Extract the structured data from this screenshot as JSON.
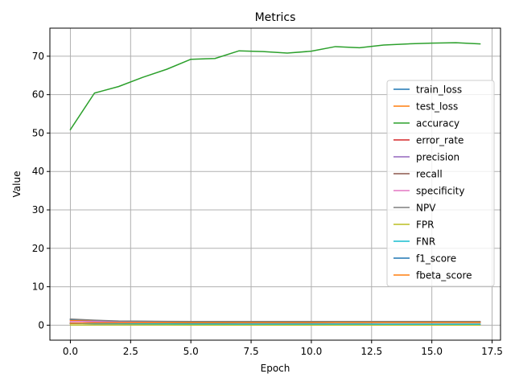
{
  "chart_data": {
    "type": "line",
    "title": "Metrics",
    "xlabel": "Epoch",
    "ylabel": "Value",
    "xlim": [
      -0.85,
      17.85
    ],
    "ylim": [
      -3.9,
      77.3
    ],
    "xticks": [
      0.0,
      2.5,
      5.0,
      7.5,
      10.0,
      12.5,
      15.0,
      17.5
    ],
    "xtick_labels": [
      "0.0",
      "2.5",
      "5.0",
      "7.5",
      "10.0",
      "12.5",
      "15.0",
      "17.5"
    ],
    "yticks": [
      0,
      10,
      20,
      30,
      40,
      50,
      60,
      70
    ],
    "ytick_labels": [
      "0",
      "10",
      "20",
      "30",
      "40",
      "50",
      "60",
      "70"
    ],
    "grid": true,
    "legend_position": "center-right",
    "x": [
      0,
      1,
      2,
      3,
      4,
      5,
      6,
      7,
      8,
      9,
      10,
      11,
      12,
      13,
      14,
      15,
      16,
      17
    ],
    "series": [
      {
        "name": "train_loss",
        "color": "#1f77b4",
        "values": [
          1.45,
          1.15,
          1.05,
          0.98,
          0.93,
          0.89,
          0.86,
          0.84,
          0.82,
          0.81,
          0.8,
          0.79,
          0.78,
          0.77,
          0.77,
          0.76,
          0.76,
          0.75
        ]
      },
      {
        "name": "test_loss",
        "color": "#ff7f0e",
        "values": [
          1.2,
          1.05,
          0.98,
          0.93,
          0.9,
          0.88,
          0.87,
          0.86,
          0.86,
          0.85,
          0.85,
          0.85,
          0.85,
          0.85,
          0.85,
          0.85,
          0.85,
          0.85
        ]
      },
      {
        "name": "accuracy",
        "color": "#2ca02c",
        "values": [
          50.9,
          60.4,
          62.1,
          64.5,
          66.6,
          69.2,
          69.4,
          71.4,
          71.2,
          70.8,
          71.3,
          72.5,
          72.2,
          72.9,
          73.2,
          73.4,
          73.5,
          73.2
        ]
      },
      {
        "name": "error_rate",
        "color": "#d62728",
        "values": [
          0.49,
          0.4,
          0.38,
          0.36,
          0.33,
          0.31,
          0.31,
          0.29,
          0.29,
          0.29,
          0.29,
          0.28,
          0.28,
          0.27,
          0.27,
          0.27,
          0.27,
          0.27
        ]
      },
      {
        "name": "precision",
        "color": "#9467bd",
        "values": [
          0.51,
          0.6,
          0.62,
          0.64,
          0.66,
          0.69,
          0.69,
          0.71,
          0.71,
          0.71,
          0.71,
          0.72,
          0.72,
          0.73,
          0.73,
          0.73,
          0.73,
          0.73
        ]
      },
      {
        "name": "recall",
        "color": "#8c564b",
        "values": [
          0.5,
          0.6,
          0.62,
          0.64,
          0.66,
          0.69,
          0.69,
          0.71,
          0.71,
          0.71,
          0.71,
          0.72,
          0.72,
          0.73,
          0.73,
          0.73,
          0.73,
          0.73
        ]
      },
      {
        "name": "specificity",
        "color": "#e377c2",
        "values": [
          0.95,
          0.96,
          0.96,
          0.96,
          0.96,
          0.97,
          0.97,
          0.97,
          0.97,
          0.97,
          0.97,
          0.97,
          0.97,
          0.97,
          0.97,
          0.97,
          0.97,
          0.97
        ]
      },
      {
        "name": "NPV",
        "color": "#7f7f7f",
        "values": [
          1.6,
          1.3,
          1.1,
          1.05,
          1.0,
          0.97,
          0.97,
          0.97,
          0.97,
          0.97,
          0.97,
          0.97,
          0.97,
          0.97,
          0.97,
          0.97,
          0.97,
          0.97
        ]
      },
      {
        "name": "FPR",
        "color": "#bcbd22",
        "values": [
          0.05,
          0.04,
          0.04,
          0.04,
          0.04,
          0.03,
          0.03,
          0.03,
          0.03,
          0.03,
          0.03,
          0.03,
          0.03,
          0.03,
          0.03,
          0.03,
          0.03,
          0.03
        ]
      },
      {
        "name": "FNR",
        "color": "#17becf",
        "values": [
          0.5,
          0.4,
          0.38,
          0.36,
          0.34,
          0.31,
          0.31,
          0.29,
          0.29,
          0.29,
          0.29,
          0.28,
          0.28,
          0.27,
          0.27,
          0.27,
          0.27,
          0.27
        ]
      },
      {
        "name": "f1_score",
        "color": "#1f77b4",
        "values": [
          0.5,
          0.6,
          0.62,
          0.64,
          0.66,
          0.69,
          0.69,
          0.71,
          0.71,
          0.71,
          0.71,
          0.72,
          0.72,
          0.73,
          0.73,
          0.73,
          0.73,
          0.73
        ]
      },
      {
        "name": "fbeta_score",
        "color": "#ff7f0e",
        "values": [
          0.5,
          0.6,
          0.62,
          0.64,
          0.66,
          0.69,
          0.69,
          0.71,
          0.71,
          0.71,
          0.71,
          0.72,
          0.72,
          0.73,
          0.73,
          0.73,
          0.73,
          0.73
        ]
      }
    ]
  }
}
